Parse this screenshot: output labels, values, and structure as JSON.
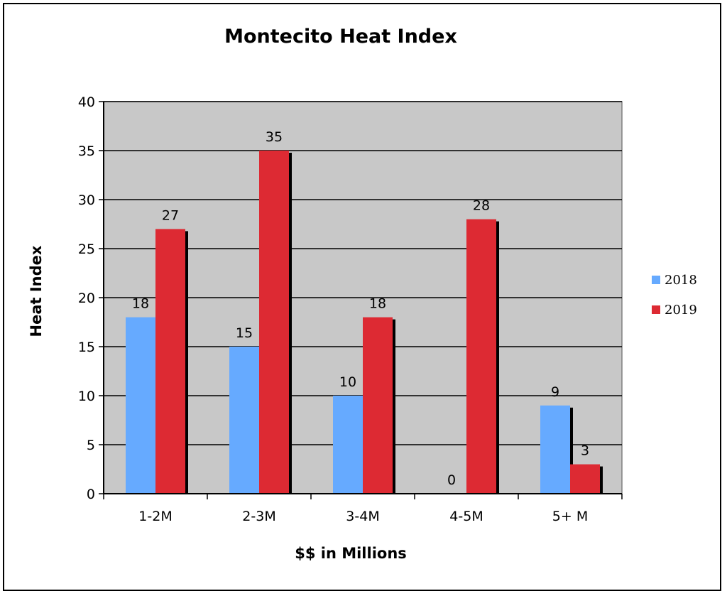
{
  "chart_data": {
    "type": "bar",
    "title": "Montecito Heat Index",
    "xlabel": "$$ in Millions",
    "ylabel": "Heat Index",
    "categories": [
      "1-2M",
      "2-3M",
      "3-4M",
      "4-5M",
      "5+ M"
    ],
    "series": [
      {
        "name": "2018",
        "values": [
          18,
          15,
          10,
          0,
          9
        ],
        "color": "#66aaff"
      },
      {
        "name": "2019",
        "values": [
          27,
          35,
          18,
          28,
          3
        ],
        "color": "#dd2a33"
      }
    ],
    "ylim": [
      0,
      40
    ],
    "yticks": [
      "0",
      "5",
      "10",
      "15",
      "20",
      "25",
      "30",
      "35",
      "40"
    ],
    "grid": true,
    "legend_position": "right",
    "plot_background": "#c8c8c8",
    "shadow_color": "#000000"
  }
}
